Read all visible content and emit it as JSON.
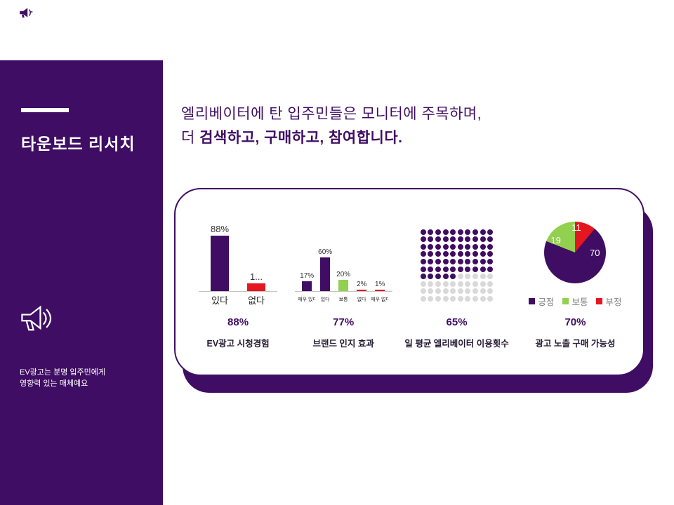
{
  "accent": {
    "purple": "#3f0d63",
    "red": "#e4161f",
    "green": "#92d050",
    "dot_empty": "#d9d9d9"
  },
  "sidebar": {
    "title": "타운보드 리서치",
    "note_line1": "EV광고는 분명 입주민에게",
    "note_line2": "영향력 있는 매체예요"
  },
  "header": {
    "line1": "엘리베이터에 탄 입주민들은 모니터에 주목하며,",
    "line2_normal": "더 ",
    "line2_bold": "검색하고, 구매하고, 참여합니다."
  },
  "chart_data": [
    {
      "type": "bar",
      "title": "EV광고 시청경험",
      "headline": "88%",
      "categories": [
        "있다",
        "없다"
      ],
      "values": [
        88,
        12
      ],
      "labels": [
        "88%",
        "1..."
      ],
      "colors": [
        "#3f0d63",
        "#e4161f"
      ],
      "ylim": [
        0,
        100
      ]
    },
    {
      "type": "bar",
      "title": "브랜드 인지 효과",
      "headline": "77%",
      "categories": [
        "매우 있다",
        "있다",
        "보통",
        "없다",
        "매우 없다"
      ],
      "values": [
        17,
        60,
        20,
        2,
        1
      ],
      "labels": [
        "17%",
        "60%",
        "20%",
        "2%",
        "1%"
      ],
      "colors": [
        "#3f0d63",
        "#3f0d63",
        "#92d050",
        "#e4161f",
        "#e4161f"
      ],
      "ylim": [
        0,
        100
      ]
    },
    {
      "type": "dot-matrix",
      "title": "일 평균 엘리베이터 이용횟수",
      "headline": "65%",
      "rows": 10,
      "cols": 10,
      "filled": 65,
      "filled_color": "#3f0d63",
      "empty_color": "#d9d9d9"
    },
    {
      "type": "pie",
      "title": "광고 노출 구매 가능성",
      "headline": "70%",
      "slices": [
        {
          "label": "긍정",
          "value": 70,
          "color": "#3f0d63"
        },
        {
          "label": "보통",
          "value": 19,
          "color": "#92d050"
        },
        {
          "label": "부정",
          "value": 11,
          "color": "#e4161f"
        }
      ],
      "legend_position": "bottom"
    }
  ]
}
